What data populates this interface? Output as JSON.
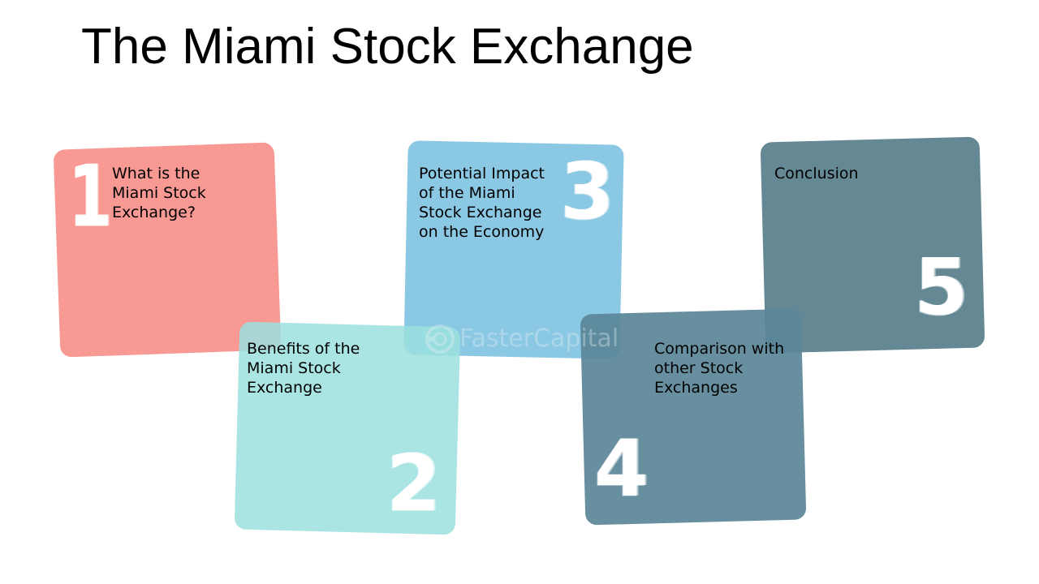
{
  "title": "The Miami Stock Exchange",
  "colors": {
    "card_1": "#f8938d",
    "card_2": "#9be1df",
    "card_3": "#7ec2e0",
    "card_4": "#5a8597",
    "card_5": "#587f8b"
  },
  "cards": [
    {
      "number": "1",
      "label": "What is the\nMiami Stock\nExchange?"
    },
    {
      "number": "2",
      "label": "Benefits of the\nMiami Stock\nExchange"
    },
    {
      "number": "3",
      "label": "Potential Impact\nof the Miami\nStock Exchange\non the Economy"
    },
    {
      "number": "4",
      "label": "Comparison with\nother Stock\nExchanges"
    },
    {
      "number": "5",
      "label": "Conclusion"
    }
  ],
  "watermark": {
    "text": "FasterCapital",
    "icon": "fastercapital-logo-icon"
  }
}
